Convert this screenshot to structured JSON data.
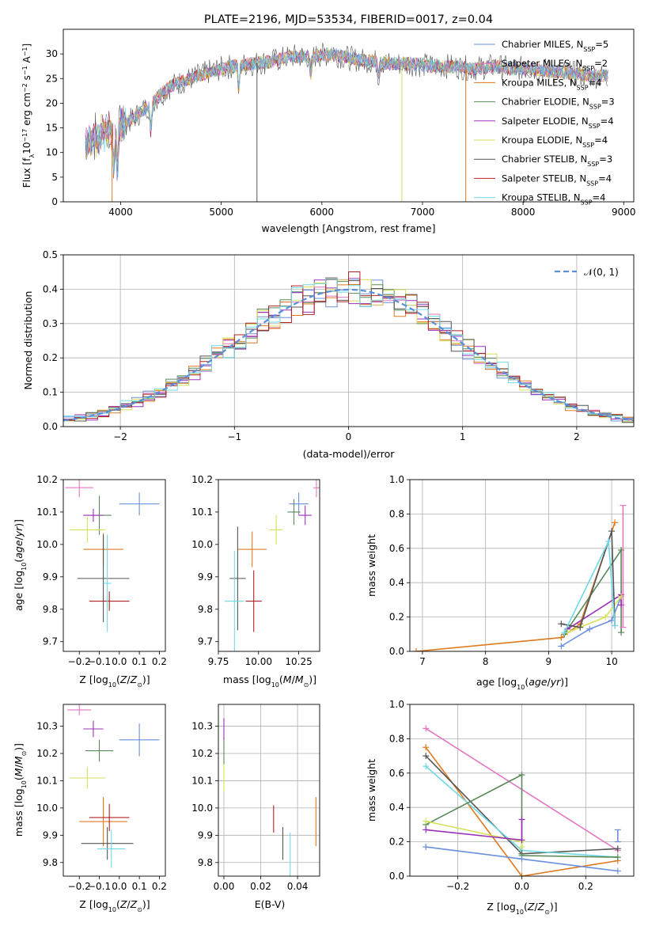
{
  "chart_data": [
    {
      "panel": "spectrum",
      "type": "line",
      "title": "PLATE=2196, MJD=53534, FIBERID=0017, z=0.04",
      "xlabel": "wavelength [Angstrom, rest frame]",
      "ylabel": "Flux [f_λ 10^-17 erg cm^-2 s^-1 A^-1]",
      "ylabel_parts": {
        "a": "Flux [f",
        "b": "λ",
        "c": "10",
        "d": "−17",
        "e": " erg cm",
        "f": "−2",
        "g": " s",
        "h": "−1",
        "i": " A",
        "j": "−1",
        "k": "]"
      },
      "xlim": [
        3430,
        9100
      ],
      "ylim": [
        0,
        35
      ],
      "xticks": [
        4000,
        5000,
        6000,
        7000,
        8000,
        9000
      ],
      "yticks": [
        0,
        5,
        10,
        15,
        20,
        25,
        30
      ],
      "continuum": [
        [
          3650,
          12
        ],
        [
          3800,
          13.5
        ],
        [
          3950,
          15
        ],
        [
          4100,
          16.5
        ],
        [
          4300,
          20
        ],
        [
          4500,
          23.5
        ],
        [
          4700,
          25
        ],
        [
          4900,
          26.5
        ],
        [
          5100,
          27.5
        ],
        [
          5300,
          28
        ],
        [
          5500,
          28.5
        ],
        [
          5700,
          29.5
        ],
        [
          5900,
          29.5
        ],
        [
          6100,
          30
        ],
        [
          6300,
          29
        ],
        [
          6500,
          28.5
        ],
        [
          6700,
          28
        ],
        [
          6900,
          28
        ],
        [
          7100,
          27.5
        ],
        [
          7300,
          27.5
        ],
        [
          7500,
          27
        ],
        [
          7700,
          27.5
        ],
        [
          7900,
          27
        ],
        [
          8100,
          27
        ],
        [
          8300,
          26.5
        ],
        [
          8500,
          26
        ],
        [
          8700,
          25.5
        ],
        [
          8850,
          25.5
        ]
      ],
      "dips": [
        [
          3933,
          8
        ],
        [
          3968,
          9
        ],
        [
          4300,
          6
        ],
        [
          5175,
          5
        ],
        [
          5890,
          4
        ],
        [
          6563,
          3
        ]
      ],
      "spikes_down": [
        {
          "x": 3915,
          "ymin": 0
        },
        {
          "x": 5355,
          "ymin": 0
        },
        {
          "x": 6795,
          "ymin": 0
        },
        {
          "x": 7430,
          "ymin": 0
        }
      ],
      "series": [
        {
          "name": "Chabrier MILES, N_SSP=5",
          "label": {
            "a": "Chabrier MILES, N",
            "sub": "SSP",
            "b": "=5"
          },
          "color": "#6a8fdc"
        },
        {
          "name": "Salpeter MILES, N_SSP=2",
          "label": {
            "a": "Salpeter MILES, N",
            "sub": "SSP",
            "b": "=2"
          },
          "color": "#e377c2"
        },
        {
          "name": "Kroupa MILES, N_SSP=4",
          "label": {
            "a": "Kroupa MILES, N",
            "sub": "SSP",
            "b": "=4"
          },
          "color": "#df7a1d"
        },
        {
          "name": "Chabrier ELODIE, N_SSP=3",
          "label": {
            "a": "Chabrier ELODIE, N",
            "sub": "SSP",
            "b": "=3"
          },
          "color": "#5a8a5a"
        },
        {
          "name": "Salpeter ELODIE, N_SSP=4",
          "label": {
            "a": "Salpeter ELODIE, N",
            "sub": "SSP",
            "b": "=4"
          },
          "color": "#9b30b8"
        },
        {
          "name": "Kroupa ELODIE, N_SSP=4",
          "label": {
            "a": "Kroupa ELODIE, N",
            "sub": "SSP",
            "b": "=4"
          },
          "color": "#d6e05a"
        },
        {
          "name": "Chabrier STELIB, N_SSP=3",
          "label": {
            "a": "Chabrier STELIB, N",
            "sub": "SSP",
            "b": "=3"
          },
          "color": "#555555"
        },
        {
          "name": "Salpeter STELIB, N_SSP=4",
          "label": {
            "a": "Salpeter STELIB, N",
            "sub": "SSP",
            "b": "=4"
          },
          "color": "#b22222"
        },
        {
          "name": "Kroupa STELIB, N_SSP=4",
          "label": {
            "a": "Kroupa STELIB, N",
            "sub": "SSP",
            "b": "=4"
          },
          "color": "#6fd9e6"
        }
      ]
    },
    {
      "panel": "residuals",
      "type": "step-histogram",
      "xlabel": "(data-model)/error",
      "ylabel": "Normed distribution",
      "xlim": [
        -2.5,
        2.5
      ],
      "ylim": [
        0,
        0.5
      ],
      "xticks": [
        -2,
        -1,
        0,
        1,
        2
      ],
      "yticks": [
        0.0,
        0.1,
        0.2,
        0.3,
        0.4,
        0.5
      ],
      "grid": true,
      "legend": {
        "label": "N(0,1)",
        "placement": "top-right"
      },
      "reference_curve": {
        "name": "N(0,1)",
        "color": "#5a8fdc",
        "style": "dashed"
      },
      "bins": {
        "start": -2.5,
        "width": 0.1,
        "count": 50
      }
    },
    {
      "panel": "age-vs-Z",
      "type": "errorbar",
      "xlabel": "Z [log10(Z/Z_sun)]",
      "ylabel": "age [log10(age/yr)]",
      "xlim": [
        -0.28,
        0.23
      ],
      "ylim": [
        9.67,
        10.2
      ],
      "xticks": [
        -0.2,
        -0.1,
        0.0,
        0.1,
        0.2
      ],
      "yticks": [
        9.7,
        9.8,
        9.9,
        10.0,
        10.1,
        10.2
      ],
      "points": [
        {
          "series": 0,
          "x": 0.1,
          "xerr": 0.1,
          "y": 10.125,
          "yerr": 0.035
        },
        {
          "series": 1,
          "x": -0.2,
          "xerr": 0.07,
          "y": 10.175,
          "yerr": 0.03
        },
        {
          "series": 2,
          "x": -0.08,
          "xerr": 0.1,
          "y": 9.985,
          "yerr": 0.05
        },
        {
          "series": 3,
          "x": -0.1,
          "xerr": 0.06,
          "y": 10.09,
          "yerr": 0.06
        },
        {
          "series": 4,
          "x": -0.13,
          "xerr": 0.05,
          "y": 10.09,
          "yerr": 0.02
        },
        {
          "series": 5,
          "x": -0.16,
          "xerr": 0.09,
          "y": 10.045,
          "yerr": 0.04
        },
        {
          "series": 6,
          "x": -0.08,
          "xerr": 0.13,
          "y": 9.895,
          "yerr": 0.135
        },
        {
          "series": 7,
          "x": -0.05,
          "xerr": 0.1,
          "y": 9.825,
          "yerr": 0.03
        },
        {
          "series": 8,
          "x": -0.06,
          "xerr": 0.02,
          "y": 9.88,
          "yerr": 0.15
        }
      ]
    },
    {
      "panel": "age-vs-mass",
      "type": "errorbar",
      "xlabel": "mass [log10(M/M_sun)]",
      "xlim": [
        9.75,
        10.38
      ],
      "ylim": [
        9.67,
        10.2
      ],
      "xticks": [
        9.75,
        10.0,
        10.25
      ],
      "yticks": [
        9.7,
        9.8,
        9.9,
        10.0,
        10.1,
        10.2
      ],
      "points": [
        {
          "series": 0,
          "x": 10.25,
          "xerr": 0.06,
          "y": 10.125,
          "yerr": 0.035
        },
        {
          "series": 1,
          "x": 10.36,
          "xerr": 0.02,
          "y": 10.175,
          "yerr": 0.03
        },
        {
          "series": 2,
          "x": 9.96,
          "xerr": 0.09,
          "y": 9.985,
          "yerr": 0.055
        },
        {
          "series": 3,
          "x": 10.22,
          "xerr": 0.04,
          "y": 10.1,
          "yerr": 0.04
        },
        {
          "series": 4,
          "x": 10.29,
          "xerr": 0.04,
          "y": 10.09,
          "yerr": 0.03
        },
        {
          "series": 5,
          "x": 10.11,
          "xerr": 0.04,
          "y": 10.045,
          "yerr": 0.045
        },
        {
          "series": 6,
          "x": 9.87,
          "xerr": 0.05,
          "y": 9.895,
          "yerr": 0.16
        },
        {
          "series": 7,
          "x": 9.97,
          "xerr": 0.05,
          "y": 9.825,
          "yerr": 0.095
        },
        {
          "series": 8,
          "x": 9.85,
          "xerr": 0.06,
          "y": 9.825,
          "yerr": 0.155
        }
      ]
    },
    {
      "panel": "mass-weight-vs-age",
      "type": "line",
      "xlabel": "age [log10(age/yr)]",
      "ylabel": "mass weight",
      "xlim": [
        6.8,
        10.35
      ],
      "ylim": [
        0,
        1
      ],
      "xticks": [
        7,
        8,
        9,
        10
      ],
      "yticks": [
        0.0,
        0.2,
        0.4,
        0.6,
        0.8,
        1.0
      ],
      "grid": true,
      "lines": [
        {
          "series": 0,
          "points": [
            [
              9.2,
              0.03
            ],
            [
              9.65,
              0.13
            ],
            [
              10.0,
              0.18
            ],
            [
              10.15,
              0.32
            ]
          ]
        },
        {
          "series": 2,
          "points": [
            [
              6.9,
              0.0
            ],
            [
              9.2,
              0.08
            ],
            [
              9.5,
              0.16
            ],
            [
              10.05,
              0.75
            ]
          ]
        },
        {
          "series": 3,
          "points": [
            [
              9.25,
              0.1
            ],
            [
              10.15,
              0.59
            ],
            [
              10.15,
              0.11
            ]
          ]
        },
        {
          "series": 4,
          "points": [
            [
              9.3,
              0.13
            ],
            [
              10.15,
              0.33
            ],
            [
              10.15,
              0.27
            ]
          ]
        },
        {
          "series": 5,
          "points": [
            [
              9.3,
              0.11
            ],
            [
              9.9,
              0.2
            ],
            [
              10.15,
              0.32
            ]
          ]
        },
        {
          "series": 6,
          "points": [
            [
              9.2,
              0.16
            ],
            [
              9.5,
              0.14
            ],
            [
              10.0,
              0.7
            ],
            [
              10.05,
              0.15
            ]
          ]
        },
        {
          "series": 8,
          "points": [
            [
              9.25,
              0.11
            ],
            [
              9.95,
              0.64
            ],
            [
              10.05,
              0.15
            ]
          ]
        }
      ],
      "error_markers": [
        {
          "series": 1,
          "x": 10.18,
          "ymin": 0.14,
          "ymax": 0.85
        }
      ]
    },
    {
      "panel": "mass-vs-Z",
      "type": "errorbar",
      "xlabel": "Z [log10(Z/Z_sun)]",
      "ylabel": "mass [log10(M/M_sun)]",
      "xlim": [
        -0.28,
        0.23
      ],
      "ylim": [
        9.75,
        10.38
      ],
      "xticks": [
        -0.2,
        -0.1,
        0.0,
        0.1,
        0.2
      ],
      "yticks": [
        9.8,
        9.9,
        10.0,
        10.1,
        10.2,
        10.3
      ],
      "points": [
        {
          "series": 0,
          "x": 0.1,
          "xerr": 0.1,
          "y": 10.25,
          "yerr": 0.06
        },
        {
          "series": 1,
          "x": -0.2,
          "xerr": 0.06,
          "y": 10.36,
          "yerr": 0.02
        },
        {
          "series": 2,
          "x": -0.08,
          "xerr": 0.12,
          "y": 9.95,
          "yerr": 0.09
        },
        {
          "series": 3,
          "x": -0.1,
          "xerr": 0.07,
          "y": 10.21,
          "yerr": 0.04
        },
        {
          "series": 4,
          "x": -0.13,
          "xerr": 0.05,
          "y": 10.29,
          "yerr": 0.03
        },
        {
          "series": 5,
          "x": -0.16,
          "xerr": 0.09,
          "y": 10.11,
          "yerr": 0.04
        },
        {
          "series": 6,
          "x": -0.06,
          "xerr": 0.13,
          "y": 9.87,
          "yerr": 0.06
        },
        {
          "series": 7,
          "x": -0.05,
          "xerr": 0.1,
          "y": 9.965,
          "yerr": 0.05
        },
        {
          "series": 8,
          "x": -0.04,
          "xerr": 0.07,
          "y": 9.85,
          "yerr": 0.07
        }
      ]
    },
    {
      "panel": "mass-vs-EBV",
      "type": "errorbar",
      "xlabel": "E(B-V)",
      "xlim": [
        -0.003,
        0.052
      ],
      "ylim": [
        9.75,
        10.38
      ],
      "xticks": [
        0.0,
        0.02,
        0.04
      ],
      "xtick_labels": [
        "0.00",
        "0.02",
        "0.04"
      ],
      "yticks": [
        9.8,
        9.9,
        10.0,
        10.1,
        10.2,
        10.3
      ],
      "grid": true,
      "points": [
        {
          "series": 3,
          "x": 0.0,
          "y": 10.21,
          "yerr": 0.05
        },
        {
          "series": 4,
          "x": 0.0,
          "y": 10.29,
          "yerr": 0.04
        },
        {
          "series": 5,
          "x": 0.0,
          "y": 10.11,
          "yerr": 0.05
        },
        {
          "series": 7,
          "x": 0.027,
          "y": 9.96,
          "yerr": 0.05
        },
        {
          "series": 6,
          "x": 0.032,
          "y": 9.87,
          "yerr": 0.06
        },
        {
          "series": 8,
          "x": 0.036,
          "y": 9.83,
          "yerr": 0.08
        },
        {
          "series": 2,
          "x": 0.05,
          "y": 9.95,
          "yerr": 0.09
        }
      ]
    },
    {
      "panel": "mass-weight-vs-Z",
      "type": "line",
      "xlabel": "Z [log10(Z/Z_sun)]",
      "ylabel": "mass weight",
      "xlim": [
        -0.35,
        0.35
      ],
      "ylim": [
        0,
        1
      ],
      "xticks": [
        -0.2,
        0.0,
        0.2
      ],
      "yticks": [
        0.0,
        0.2,
        0.4,
        0.6,
        0.8,
        1.0
      ],
      "grid": true,
      "lines": [
        {
          "series": 1,
          "points": [
            [
              -0.3,
              0.86
            ],
            [
              0.3,
              0.15
            ]
          ]
        },
        {
          "series": 2,
          "points": [
            [
              -0.3,
              0.75
            ],
            [
              0.0,
              0.0
            ],
            [
              0.3,
              0.09
            ]
          ]
        },
        {
          "series": 6,
          "points": [
            [
              -0.3,
              0.7
            ],
            [
              0.0,
              0.13
            ],
            [
              0.3,
              0.16
            ]
          ]
        },
        {
          "series": 8,
          "points": [
            [
              -0.3,
              0.64
            ],
            [
              0.0,
              0.15
            ],
            [
              0.3,
              0.11
            ]
          ]
        },
        {
          "series": 3,
          "points": [
            [
              -0.3,
              0.3
            ],
            [
              0.0,
              0.59
            ],
            [
              0.0,
              0.12
            ],
            [
              0.3,
              0.11
            ]
          ]
        },
        {
          "series": 5,
          "points": [
            [
              -0.3,
              0.32
            ],
            [
              0.0,
              0.2
            ],
            [
              0.0,
              0.17
            ]
          ]
        },
        {
          "series": 4,
          "points": [
            [
              -0.3,
              0.27
            ],
            [
              0.0,
              0.21
            ],
            [
              0.0,
              0.33
            ]
          ]
        },
        {
          "series": 0,
          "points": [
            [
              -0.3,
              0.17
            ],
            [
              0.0,
              0.1
            ],
            [
              0.3,
              0.03
            ]
          ]
        }
      ],
      "error_markers": [
        {
          "series": 0,
          "x": 0.3,
          "ymin": 0.2,
          "ymax": 0.27
        }
      ]
    }
  ]
}
